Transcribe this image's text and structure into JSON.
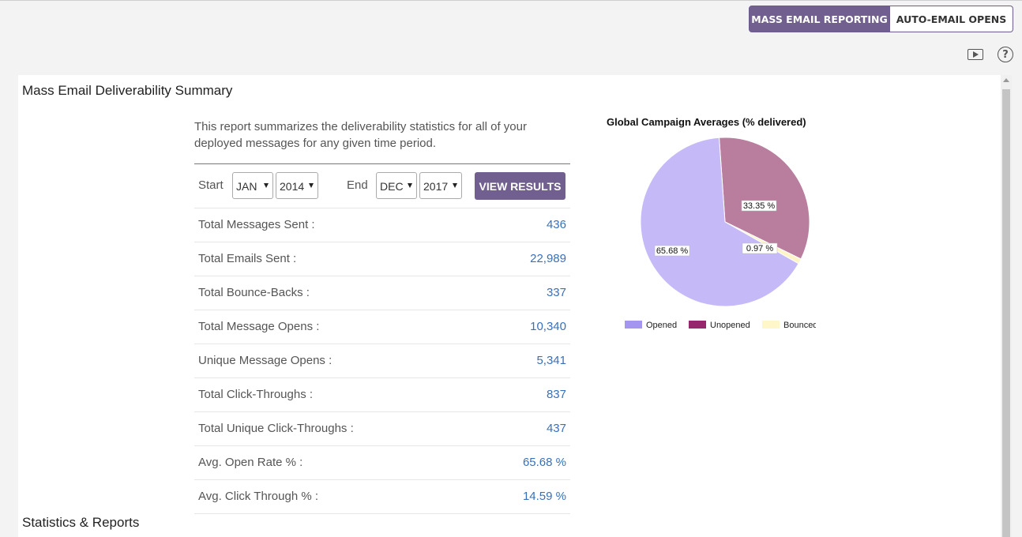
{
  "tabs": [
    {
      "label": "MASS EMAIL REPORTING",
      "active": true
    },
    {
      "label": "AUTO-EMAIL OPENS",
      "active": false
    }
  ],
  "toolbar": {
    "video_icon": "video-play-icon",
    "help_icon": "question-circle-icon",
    "help_glyph": "?"
  },
  "summary": {
    "title": "Mass Email Deliverability Summary",
    "intro": "This report summarizes the deliverability statistics for all of your deployed messages for any given time period.",
    "start_label": "Start",
    "end_label": "End",
    "start_month": "JAN",
    "start_year": "2014",
    "end_month": "DEC",
    "end_year": "2017",
    "view_button": "VIEW RESULTS",
    "stats": [
      {
        "label": "Total Messages Sent :",
        "value": "436"
      },
      {
        "label": "Total Emails Sent :",
        "value": "22,989"
      },
      {
        "label": "Total Bounce-Backs :",
        "value": "337"
      },
      {
        "label": "Total Message Opens :",
        "value": "10,340"
      },
      {
        "label": "Unique Message Opens :",
        "value": "5,341"
      },
      {
        "label": "Total Click-Throughs :",
        "value": "837"
      },
      {
        "label": "Total Unique Click-Throughs :",
        "value": "437"
      },
      {
        "label": "Avg. Open Rate % :",
        "value": "65.68 %"
      },
      {
        "label": "Avg. Click Through % :",
        "value": "14.59 %"
      }
    ]
  },
  "stats_reports": {
    "title": "Statistics & Reports"
  },
  "colors": {
    "accent": "#71608f",
    "link": "#3a70b7"
  },
  "chart_data": {
    "type": "pie",
    "title": "Global Campaign Averages (% delivered)",
    "slices": [
      {
        "label": "Opened",
        "value": 65.68,
        "display": "65.68 %",
        "color": "#c5b9f8",
        "legend_color": "#a496f0"
      },
      {
        "label": "Unopened",
        "value": 33.35,
        "display": "33.35 %",
        "color": "#b97d9d",
        "legend_color": "#96276d"
      },
      {
        "label": "Bounced",
        "value": 0.97,
        "display": "0.97 %",
        "color": "#fff4c6",
        "legend_color": "#fff7c9"
      }
    ],
    "legend_position": "bottom"
  }
}
